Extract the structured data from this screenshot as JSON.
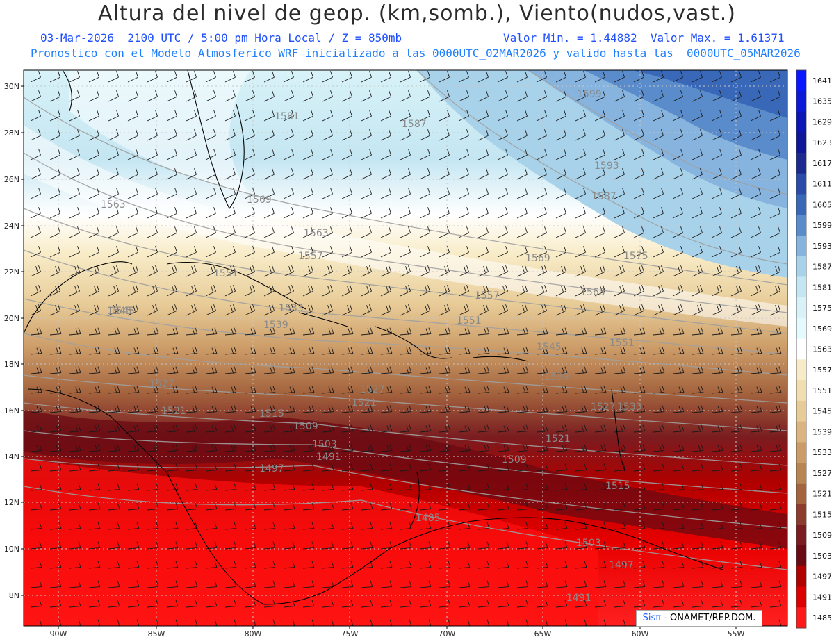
{
  "header": {
    "title": "Altura del nivel de geop. (km,somb.), Viento(nudos,vast.)",
    "line1_left": "03-Mar-2026  2100 UTC / 5:00 pm Hora Local / Z = 850mb",
    "line1_right": "Valor Min. = 1.44882  Valor Max. = 1.61371",
    "line2": "Pronostico con el Modelo Atmosferico WRF inicializado a las 0000UTC_02MAR2026 y valido hasta las  0000UTC_05MAR2026"
  },
  "credit": {
    "brand": "Sisπ",
    "text": " - ONAMET/REP.DOM."
  },
  "axes": {
    "lat_labels": [
      "30N",
      "28N",
      "26N",
      "24N",
      "22N",
      "20N",
      "18N",
      "16N",
      "14N",
      "12N",
      "10N",
      "8N"
    ],
    "lon_labels": [
      "90W",
      "85W",
      "80W",
      "75W",
      "70W",
      "65W",
      "60W",
      "55W"
    ]
  },
  "colorbar": {
    "labels": [
      "1641",
      "1635",
      "1629",
      "1623",
      "1617",
      "1611",
      "1605",
      "1599",
      "1593",
      "1587",
      "1581",
      "1575",
      "1569",
      "1563",
      "1557",
      "1551",
      "1545",
      "1539",
      "1533",
      "1527",
      "1521",
      "1515",
      "1509",
      "1503",
      "1497",
      "1491",
      "1485"
    ],
    "colors": [
      "#0a18ff",
      "#0c1ad8",
      "#0c16b4",
      "#0e1796",
      "#1c2a90",
      "#2c4aa8",
      "#3a68b8",
      "#5a8ccc",
      "#86b4de",
      "#a8d2ea",
      "#c4e6f2",
      "#d8f2f8",
      "#e4fafc",
      "#ffffff",
      "#f8ecc8",
      "#f0deb0",
      "#e8cc98",
      "#dcb480",
      "#cc9c68",
      "#b88452",
      "#a4643e",
      "#8c3c2c",
      "#7a1c20",
      "#6a0a12",
      "#b00000",
      "#dc0000",
      "#ff1a1a"
    ]
  },
  "contour_labels": [
    "1581",
    "1587",
    "1599",
    "1593",
    "1587",
    "1563",
    "1569",
    "1563",
    "1557",
    "1551",
    "1575",
    "1569",
    "1563",
    "1545",
    "1557",
    "1551",
    "1539",
    "1545",
    "1551",
    "1533",
    "1539",
    "1527",
    "1527",
    "1521",
    "1533",
    "1521",
    "1515",
    "1509",
    "1503",
    "1521",
    "1527",
    "1497",
    "1491",
    "1509",
    "1515",
    "1485",
    "1503",
    "1497",
    "1491",
    "1545"
  ]
}
